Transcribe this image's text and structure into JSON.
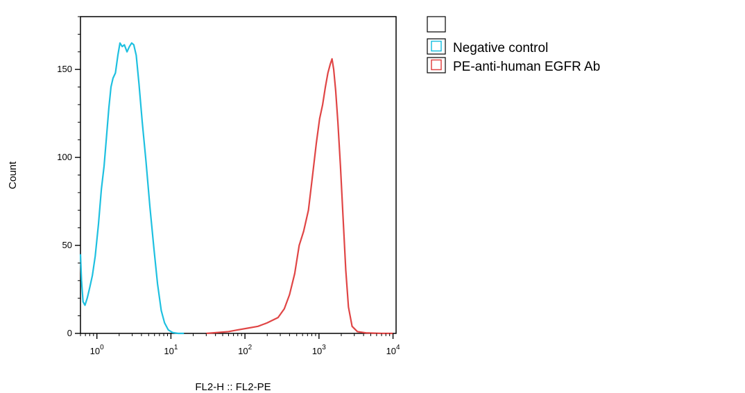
{
  "chart_data": {
    "type": "line",
    "subtype": "histogram",
    "title": "",
    "xlabel": "FL2-H :: FL2-PE",
    "ylabel": "Count",
    "xscale": "log",
    "xlim": [
      0.6,
      11000
    ],
    "ylim": [
      0,
      180
    ],
    "x_ticks": [
      {
        "value": 1,
        "base": "10",
        "exp": "0"
      },
      {
        "value": 10,
        "base": "10",
        "exp": "1"
      },
      {
        "value": 100,
        "base": "10",
        "exp": "2"
      },
      {
        "value": 1000,
        "base": "10",
        "exp": "3"
      },
      {
        "value": 10000,
        "base": "10",
        "exp": "4"
      }
    ],
    "y_ticks": [
      {
        "value": 0,
        "label": "0"
      },
      {
        "value": 50,
        "label": "50"
      },
      {
        "value": 100,
        "label": "100"
      },
      {
        "value": 150,
        "label": "150"
      }
    ],
    "grid": false,
    "legend_position": "top-right",
    "legend_blank_entry": true,
    "series": [
      {
        "name": "Negative control",
        "color": "#1ec0e0",
        "points": [
          [
            0.6,
            45
          ],
          [
            0.62,
            30
          ],
          [
            0.65,
            18
          ],
          [
            0.69,
            16
          ],
          [
            0.74,
            20
          ],
          [
            0.8,
            26
          ],
          [
            0.87,
            33
          ],
          [
            0.95,
            44
          ],
          [
            1.05,
            62
          ],
          [
            1.15,
            82
          ],
          [
            1.25,
            95
          ],
          [
            1.35,
            112
          ],
          [
            1.45,
            128
          ],
          [
            1.55,
            140
          ],
          [
            1.65,
            145
          ],
          [
            1.78,
            148
          ],
          [
            1.92,
            158
          ],
          [
            2.05,
            165
          ],
          [
            2.2,
            163
          ],
          [
            2.35,
            164
          ],
          [
            2.55,
            160
          ],
          [
            2.75,
            163
          ],
          [
            2.95,
            165
          ],
          [
            3.15,
            164
          ],
          [
            3.4,
            158
          ],
          [
            3.7,
            142
          ],
          [
            4.1,
            120
          ],
          [
            4.6,
            98
          ],
          [
            5.2,
            72
          ],
          [
            5.9,
            48
          ],
          [
            6.6,
            28
          ],
          [
            7.4,
            13
          ],
          [
            8.2,
            6
          ],
          [
            9.2,
            2
          ],
          [
            10.5,
            0.5
          ],
          [
            12.5,
            0
          ],
          [
            15,
            0
          ]
        ]
      },
      {
        "name": "PE-anti-human EGFR Ab",
        "color": "#e04545",
        "points": [
          [
            30,
            0
          ],
          [
            60,
            1
          ],
          [
            80,
            2
          ],
          [
            110,
            3
          ],
          [
            150,
            4
          ],
          [
            200,
            6
          ],
          [
            280,
            9
          ],
          [
            340,
            14
          ],
          [
            400,
            22
          ],
          [
            470,
            34
          ],
          [
            540,
            50
          ],
          [
            620,
            58
          ],
          [
            720,
            70
          ],
          [
            820,
            90
          ],
          [
            920,
            108
          ],
          [
            1020,
            122
          ],
          [
            1120,
            130
          ],
          [
            1220,
            140
          ],
          [
            1320,
            148
          ],
          [
            1420,
            153
          ],
          [
            1500,
            156
          ],
          [
            1580,
            150
          ],
          [
            1680,
            138
          ],
          [
            1800,
            120
          ],
          [
            1950,
            95
          ],
          [
            2120,
            65
          ],
          [
            2300,
            36
          ],
          [
            2500,
            15
          ],
          [
            2800,
            4
          ],
          [
            3300,
            1
          ],
          [
            4300,
            0.3
          ],
          [
            7000,
            0
          ],
          [
            10000,
            0
          ]
        ]
      }
    ]
  }
}
